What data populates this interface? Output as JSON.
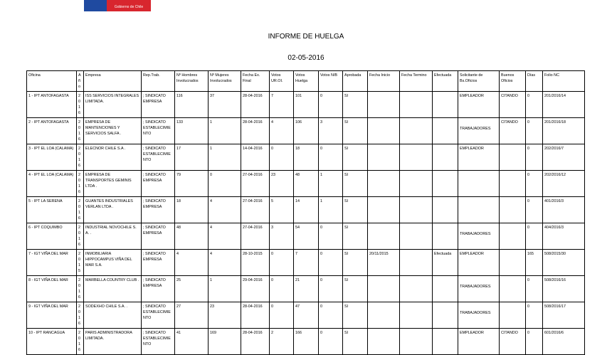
{
  "logo": {
    "text": "Gobierno de Chile"
  },
  "title": "INFORME DE HUELGA",
  "date": "02-05-2016",
  "columns": [
    "Oficina",
    "Año",
    "Empresa",
    "Rep.Trab.",
    "Nº Hombres Involucrados",
    "Nº Mujeres Involucrados",
    "Fecha Ex. Final",
    "Votos UR.OI.",
    "Votos Huelga",
    "Votos N/B",
    "Aprobada",
    "Fecha Inicio",
    "Fecha Termino",
    "Efectuada",
    "Solicitante de Bs.Oficios",
    "Buenos Oficios",
    "Días",
    "Folio NC"
  ],
  "rows": [
    [
      "1 - IPT ANTOFAGASTA",
      "2016",
      "ISS SERVICIOS INTEGRALES LIMITADA.",
      "; SINDICATO EMPRESA",
      "116",
      "37",
      "28-04-2016",
      "7",
      "101",
      "0",
      "SI",
      "",
      "",
      "",
      "EMPLEADOR",
      "CITANDO",
      "0",
      "201/2016/14"
    ],
    [
      "2 - IPT ANTOFAGASTA",
      "2016",
      "EMPRESA DE MANTENCIONES Y SERVICIOS SALFA .",
      "; SINDICATO ESTABLECIMIENTO",
      "133",
      "1",
      "28-04-2016",
      "4",
      "106",
      "3",
      "SI",
      "",
      "",
      "",
      "TRABAJADORES",
      "CITANDO",
      "0",
      "201/2016/18"
    ],
    [
      "3 - IPT EL LOA (CALAMA)",
      "2016",
      "ELECNOR CHILE S.A .",
      "; SINDICATO ESTABLECIMIENTO",
      "17",
      "1",
      "14-04-2016",
      "0",
      "18",
      "0",
      "SI",
      "",
      "",
      "",
      "EMPLEADOR",
      "",
      "0",
      "202/2016/7"
    ],
    [
      "4 - IPT EL LOA (CALAMA)",
      "2016",
      "EMPRESA DE TRANSPORTES GEMINIS LTDA .",
      "; SINDICATO EMPRESA",
      "79",
      "0",
      "27-04-2016",
      "23",
      "48",
      "1",
      "SI",
      "",
      "",
      "",
      "",
      "",
      "0",
      "202/2016/12"
    ],
    [
      "5 - IPT LA SERENA",
      "2016",
      "GUANTES INDUSTRIALES VERLAN LTDA .",
      "; SINDICATO EMPRESA",
      "18",
      "4",
      "27-04-2016",
      "5",
      "14",
      "1",
      "SI",
      "",
      "",
      "",
      "",
      "",
      "0",
      "401/2016/3"
    ],
    [
      "6 - IPT COQUIMBO",
      "2016",
      "INDUSTRIAL NOVOCHILE S. A. .",
      "; SINDICATO EMPRESA",
      "48",
      "4",
      "27-04-2016",
      "3",
      "54",
      "0",
      "SI",
      "",
      "",
      "",
      "TRABAJADORES",
      "",
      "0",
      "404/2016/3"
    ],
    [
      "7 - IGT VIÑA DEL MAR",
      "2015",
      "INMOBILIARIA HIPPOCAMPUS VIÑA DEL MAR S.A.",
      "; SINDICATO EMPRESA",
      "4",
      "4",
      "28-10-2015",
      "0",
      "7",
      "0",
      "SI",
      "20/11/2015",
      "",
      "Efectuada",
      "EMPLEADOR",
      "",
      "165",
      "508/2015/30"
    ],
    [
      "8 - IGT VIÑA DEL MAR",
      "2016",
      "MARBELLA COUNTRY CLUB .",
      "; SINDICATO EMPRESA",
      "25",
      "1",
      "29-04-2016",
      "0",
      "21",
      "0",
      "SI",
      "",
      "",
      "",
      "TRABAJADORES",
      "",
      "0",
      "508/2016/16"
    ],
    [
      "9 - IGT VIÑA DEL MAR",
      "2016",
      "SODEXHO CHILE S.A. .",
      "; SINDICATO ESTABLECIMIENTO",
      "27",
      "23",
      "28-04-2016",
      "0",
      "47",
      "0",
      "SI",
      "",
      "",
      "",
      "TRABAJADORES",
      "",
      "0",
      "508/2016/17"
    ],
    [
      "10 - IPT RANCAGUA",
      "2016",
      "PARIS ADMINISTRADORA LIMITADA.",
      "; SINDICATO ESTABLECIMIENTO",
      "41",
      "169",
      "28-04-2016",
      "2",
      "166",
      "0",
      "SI",
      "",
      "",
      "",
      "EMPLEADOR",
      "CITANDO",
      "0",
      "601/2016/6"
    ]
  ],
  "bottom_solicitante": [
    "TRABAJADORES"
  ]
}
